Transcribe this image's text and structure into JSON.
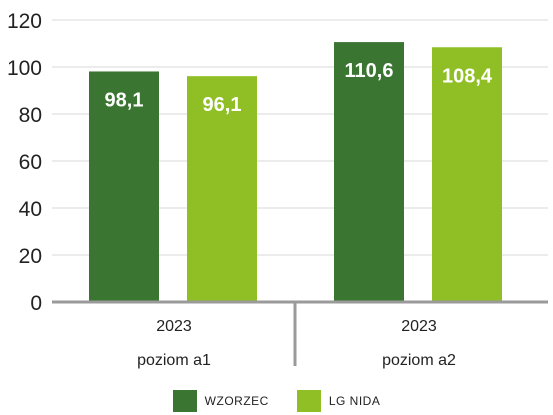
{
  "chart_data": {
    "type": "bar",
    "groups": [
      {
        "year": "2023",
        "label": "poziom a1"
      },
      {
        "year": "2023",
        "label": "poziom a2"
      }
    ],
    "series": [
      {
        "name": "WZORZEC",
        "color": "#3a7631",
        "values": [
          98.1,
          110.6
        ],
        "labels": [
          "98,1",
          "110,6"
        ]
      },
      {
        "name": "LG NIDA",
        "color": "#8fbf24",
        "values": [
          96.1,
          108.4
        ],
        "labels": [
          "96,1",
          "108,4"
        ]
      }
    ],
    "yticks": [
      "0",
      "20",
      "40",
      "60",
      "80",
      "100",
      "120"
    ],
    "ylim": [
      0,
      120
    ],
    "grid": true,
    "legend_position": "bottom"
  }
}
